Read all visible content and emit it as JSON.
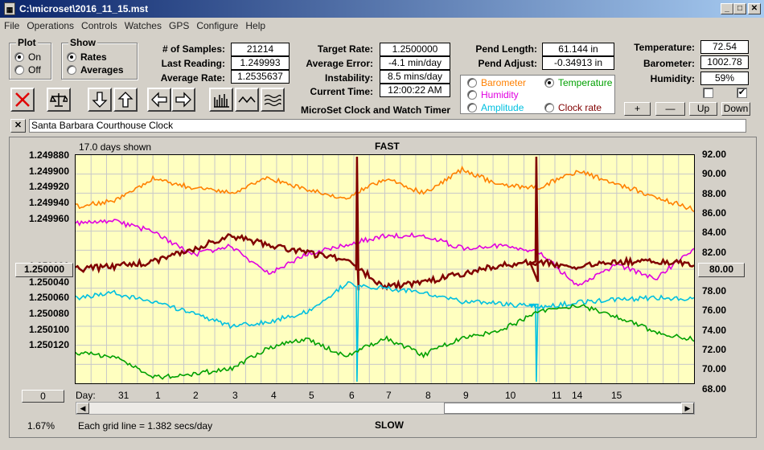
{
  "window": {
    "title": "C:\\microset\\2016_11_15.mst",
    "app_icon": "calculator-icon"
  },
  "menu": [
    "File",
    "Operations",
    "Controls",
    "Watches",
    "GPS",
    "Configure",
    "Help"
  ],
  "plot_group": {
    "legend": "Plot",
    "options": [
      "On",
      "Off"
    ],
    "selected": "On"
  },
  "show_group": {
    "legend": "Show",
    "options": [
      "Rates",
      "Averages"
    ],
    "selected": "Rates"
  },
  "stats": {
    "samples_label": "# of Samples:",
    "samples": "21214",
    "last_reading_label": "Last Reading:",
    "last_reading": "1.249993",
    "average_rate_label": "Average Rate:",
    "average_rate": "1.2535637",
    "target_rate_label": "Target Rate:",
    "target_rate": "1.2500000",
    "average_error_label": "Average Error:",
    "average_error": "-4.1 min/day",
    "instability_label": "Instability:",
    "instability": "8.5 mins/day",
    "current_time_label": "Current Time:",
    "current_time": "12:00:22 AM",
    "pend_length_label": "Pend Length:",
    "pend_length": "61.144 in",
    "pend_adjust_label": "Pend Adjust:",
    "pend_adjust": "-0.34913 in",
    "temperature_label": "Temperature:",
    "temperature": "72.54",
    "barometer_label": "Barometer:",
    "barometer": "1002.78",
    "humidity_label": "Humidity:",
    "humidity": "59%"
  },
  "app_name": "MicroSet Clock and Watch Timer",
  "sensor_options": [
    {
      "label": "Barometer",
      "color": "#ff8000",
      "selected": false
    },
    {
      "label": "Temperature",
      "color": "#00a000",
      "selected": true
    },
    {
      "label": "Humidity",
      "color": "#e000e0",
      "selected": false
    },
    {
      "label": "Amplitude",
      "color": "#00c0e0",
      "selected": false
    },
    {
      "label": "Clock rate",
      "color": "#800000",
      "selected": false
    }
  ],
  "right_buttons": {
    "plus": "+",
    "minus": "—",
    "up": "Up",
    "down": "Down"
  },
  "checkboxes": [
    false,
    true
  ],
  "toolbar_icons": [
    "clear-x-icon",
    "balance-scale-icon",
    "arrow-down-icon",
    "arrow-up-icon",
    "arrow-left-icon",
    "arrow-right-icon",
    "bar-graph-icon",
    "wave-icon",
    "multi-wave-icon"
  ],
  "clock_name": "Santa Barbara Courthouse Clock",
  "plot": {
    "days_shown": "17.0 days shown",
    "top_label": "FAST",
    "bottom_label": "SLOW",
    "grid_note": "Each grid line = 1.382 secs/day",
    "percent": "1.67%",
    "center_left": "1.250000",
    "center_right": "80.00",
    "zero_button": "0",
    "day_label": "Day:",
    "left_ticks": [
      "1.249880",
      "1.249900",
      "1.249920",
      "1.249940",
      "1.249960",
      "",
      "1.250020",
      "1.250040",
      "1.250060",
      "1.250080",
      "1.250100",
      "1.250120"
    ],
    "right_ticks": [
      "92.00",
      "90.00",
      "88.00",
      "86.00",
      "84.00",
      "82.00",
      "",
      "78.00",
      "76.00",
      "74.00",
      "72.00",
      "70.00",
      "68.00"
    ],
    "days": [
      "31",
      "1",
      "2",
      "3",
      "4",
      "5",
      "6",
      "7",
      "8",
      "9",
      "10",
      "11",
      "14",
      "15"
    ]
  },
  "chart_data": {
    "type": "line",
    "x_unit": "days",
    "xlim": [
      0,
      17
    ],
    "y_left_lim": [
      1.24987,
      1.25013
    ],
    "y_right_lim": [
      68,
      92
    ],
    "series": [
      {
        "name": "Barometer",
        "color": "#ff8000",
        "axis": "right",
        "values": [
          86.6,
          87.2,
          89.5,
          88.6,
          88.0,
          89.6,
          88.4,
          87.5,
          89.5,
          88.0,
          90.5,
          88.8,
          88.6,
          90.3,
          89.0,
          87.6,
          86.3
        ]
      },
      {
        "name": "Humidity",
        "color": "#e000e0",
        "axis": "right",
        "values": [
          84.8,
          85.0,
          84.0,
          81.5,
          82.4,
          79.6,
          81.6,
          82.6,
          83.5,
          83.6,
          82.2,
          82.5,
          81.8,
          78.2,
          80.5,
          79.0,
          82.2
        ]
      },
      {
        "name": "Clock rate",
        "color": "#800000",
        "axis": "left",
        "values": [
          1.25,
          1.249997,
          1.249992,
          1.249978,
          1.249962,
          1.249972,
          1.249982,
          1.24999,
          1.25002,
          1.250015,
          1.250005,
          1.249995,
          1.249992,
          1.249997,
          1.249992,
          1.24999,
          1.249995
        ]
      },
      {
        "name": "Amplitude",
        "color": "#00c0e0",
        "axis": "right",
        "values": [
          77.0,
          77.5,
          76.5,
          75.5,
          74.0,
          74.5,
          75.5,
          78.5,
          78.0,
          77.5,
          76.6,
          76.4,
          76.0,
          76.5,
          76.8,
          77.0,
          76.8
        ]
      },
      {
        "name": "Temperature",
        "color": "#00a000",
        "axis": "right",
        "values": [
          71.2,
          70.8,
          68.6,
          69.0,
          69.5,
          71.8,
          72.6,
          70.8,
          72.8,
          71.0,
          72.8,
          73.6,
          75.5,
          76.2,
          75.0,
          73.4,
          72.6
        ]
      }
    ]
  }
}
